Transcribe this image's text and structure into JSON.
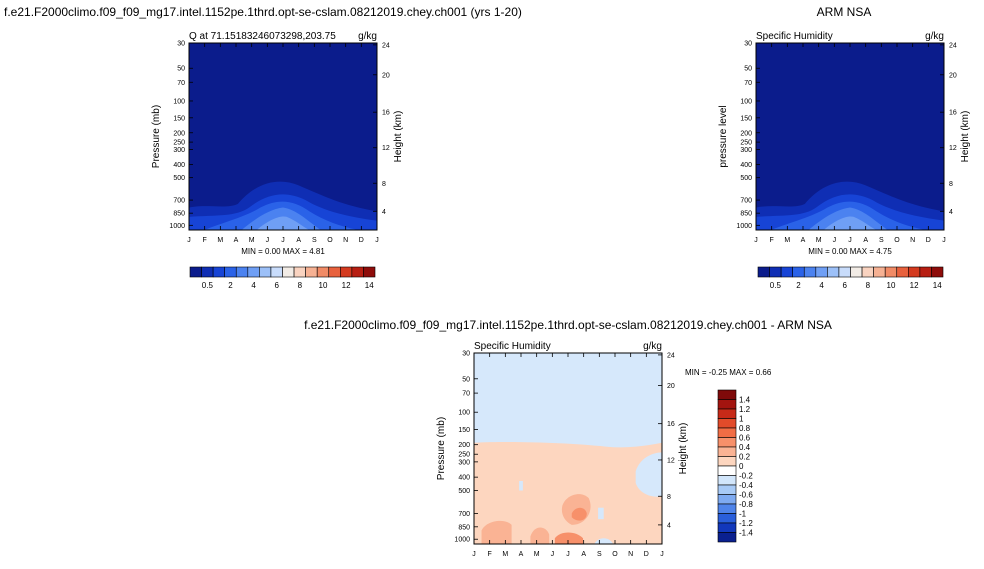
{
  "titles": {
    "top_left": "f.e21.F2000climo.f09_f09_mg17.intel.1152pe.1thrd.opt-se-cslam.08212019.chey.ch001 (yrs 1-20)",
    "top_right": "ARM NSA",
    "bottom": "f.e21.F2000climo.f09_f09_mg17.intel.1152pe.1thrd.opt-se-cslam.08212019.chey.ch001 - ARM NSA"
  },
  "chart_data": [
    {
      "type": "heatmap",
      "title": "Q at 71.151832460732 98,203.75",
      "subtitle_left": "Q at 71.15183246073298,203.75",
      "units": "g/kg",
      "ylabel_left": "Pressure (mb)",
      "ylabel_right": "Height (km)",
      "months": [
        "J",
        "F",
        "M",
        "A",
        "M",
        "J",
        "J",
        "A",
        "S",
        "O",
        "N",
        "D",
        "J"
      ],
      "pressure_ticks": [
        "30",
        "50",
        "70",
        "100",
        "150",
        "200",
        "250",
        "300",
        "400",
        "500",
        "700",
        "850",
        "1000"
      ],
      "height_ticks": [
        "24",
        "20",
        "16",
        "12",
        "8",
        "4"
      ],
      "stats": "MIN =  0.00 MAX =   4.81",
      "colorbar_labels": [
        "0.5",
        "2",
        "4",
        "6",
        "8",
        "10",
        "12",
        "14"
      ],
      "colors": [
        "#0b1c8c",
        "#0f2eb4",
        "#1744d6",
        "#2a62e8",
        "#4b82f0",
        "#6f9ff5",
        "#9cc0f8",
        "#c8dcfb",
        "#f2ece6",
        "#f9d3c0",
        "#f6b193",
        "#f18b66",
        "#e8613d",
        "#d43a1f",
        "#b71e12",
        "#8e0c0a"
      ],
      "summer_layers_max_level_index": 3
    },
    {
      "type": "heatmap",
      "title": "Specific Humidity",
      "units": "g/kg",
      "ylabel_left": "pressure level",
      "ylabel_right": "Height (km)",
      "months": [
        "J",
        "F",
        "M",
        "A",
        "M",
        "J",
        "J",
        "A",
        "S",
        "O",
        "N",
        "D",
        "J"
      ],
      "pressure_ticks": [
        "30",
        "50",
        "70",
        "100",
        "150",
        "200",
        "250",
        "300",
        "400",
        "500",
        "700",
        "850",
        "1000"
      ],
      "height_ticks": [
        "24",
        "20",
        "16",
        "12",
        "8",
        "4"
      ],
      "stats": "MIN =  0.00 MAX =   4.75",
      "colorbar_labels": [
        "0.5",
        "2",
        "4",
        "6",
        "8",
        "10",
        "12",
        "14"
      ]
    },
    {
      "type": "heatmap",
      "title": "Specific Humidity",
      "units": "g/kg",
      "ylabel_left": "Pressure (mb)",
      "ylabel_right": "Height (km)",
      "months": [
        "J",
        "F",
        "M",
        "A",
        "M",
        "J",
        "J",
        "A",
        "S",
        "O",
        "N",
        "D",
        "J"
      ],
      "pressure_ticks": [
        "30",
        "50",
        "70",
        "100",
        "150",
        "200",
        "250",
        "300",
        "400",
        "500",
        "700",
        "850",
        "1000"
      ],
      "height_ticks": [
        "24",
        "20",
        "16",
        "12",
        "8",
        "4"
      ],
      "stats": "MIN =  -0.25 MAX =   0.66",
      "colorbar_labels": [
        "1.4",
        "1.2",
        "1",
        "0.8",
        "0.6",
        "0.4",
        "0.2",
        "0",
        "-0.2",
        "-0.4",
        "-0.6",
        "-0.8",
        "-1",
        "-1.2",
        "-1.4"
      ],
      "diff_colors": [
        "#7f0a0a",
        "#a3140f",
        "#c72a18",
        "#e24b2a",
        "#f16d45",
        "#f7906a",
        "#fab394",
        "#fdd6bf",
        "#ffffff",
        "#d2e6fb",
        "#a8caf6",
        "#7eaaf1",
        "#4f84ea",
        "#2a5fdb",
        "#1238bb",
        "#0a208f"
      ]
    }
  ]
}
